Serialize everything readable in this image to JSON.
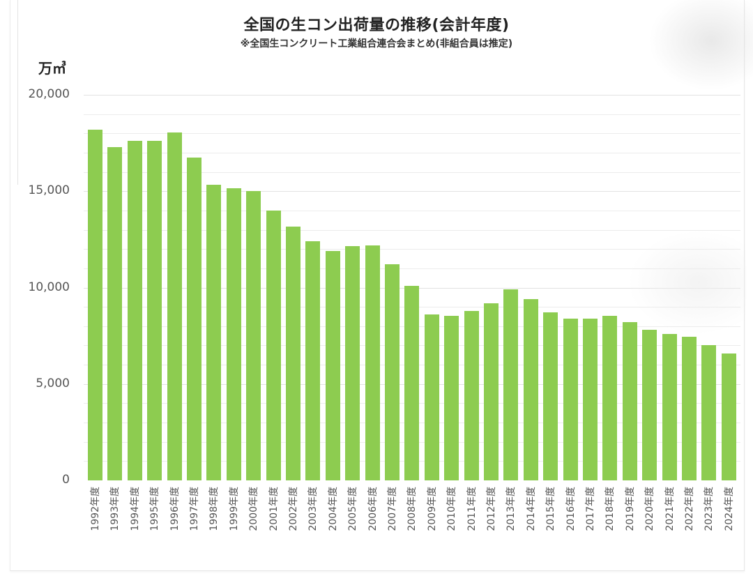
{
  "chart_data": {
    "type": "bar",
    "title": "全国の生コン出荷量の推移(会計年度)",
    "subtitle": "※全国生コンクリート工業組合連合会まとめ(非組合員は推定)",
    "ylabel": "万㎥",
    "xlabel": "",
    "ylim": [
      0,
      20000
    ],
    "yticks": [
      "0",
      "5,000",
      "10,000",
      "15,000",
      "20,000"
    ],
    "grid": true,
    "legend": null,
    "color": "#8dcc50",
    "categories": [
      "1992年度",
      "1993年度",
      "1994年度",
      "1995年度",
      "1996年度",
      "1997年度",
      "1998年度",
      "1999年度",
      "2000年度",
      "2001年度",
      "2002年度",
      "2003年度",
      "2004年度",
      "2005年度",
      "2006年度",
      "2007年度",
      "2008年度",
      "2009年度",
      "2010年度",
      "2011年度",
      "2012年度",
      "2013年度",
      "2014年度",
      "2015年度",
      "2016年度",
      "2017年度",
      "2018年度",
      "2019年度",
      "2020年度",
      "2021年度",
      "2022年度",
      "2023年度",
      "2024年度"
    ],
    "values": [
      18200,
      17300,
      17600,
      17600,
      18050,
      16750,
      15350,
      15150,
      15000,
      14000,
      13150,
      12400,
      11900,
      12150,
      12200,
      11200,
      10100,
      8600,
      8550,
      8800,
      9200,
      9900,
      9400,
      8700,
      8400,
      8400,
      8550,
      8200,
      7800,
      7600,
      7450,
      7000,
      6600
    ]
  }
}
